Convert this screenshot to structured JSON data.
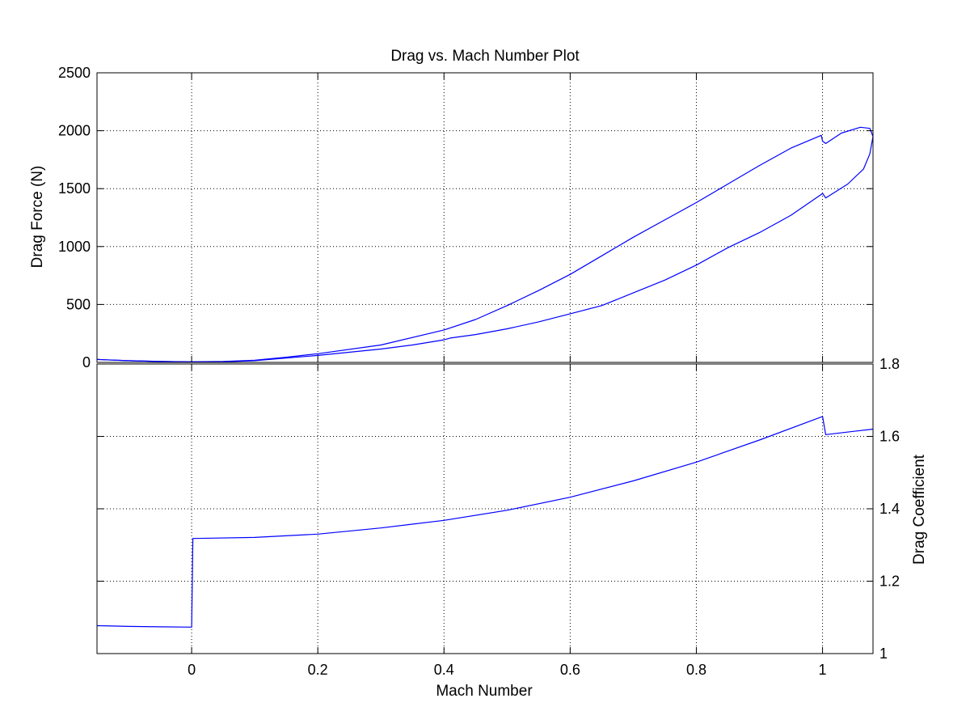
{
  "chart_data": [
    {
      "type": "line",
      "title": "Drag vs. Mach Number Plot",
      "xlabel": "",
      "ylabel": "Drag Force (N)",
      "xlim": [
        -0.15,
        1.08
      ],
      "ylim": [
        0,
        2500
      ],
      "xticks": [
        0,
        0.2,
        0.4,
        0.6,
        0.8,
        1
      ],
      "xtick_labels_visible": false,
      "yticks": [
        0,
        500,
        1000,
        1500,
        2000,
        2500
      ],
      "ytick_labels": [
        "0",
        "500",
        "1000",
        "1500",
        "2000",
        "2500"
      ],
      "yaxis_side": "left",
      "grid": true,
      "color": "#0000ff",
      "series": [
        {
          "x": [
            -0.15,
            -0.1,
            -0.05,
            0,
            0.05,
            0.1,
            0.15,
            0.2,
            0.3,
            0.4,
            0.45,
            0.5,
            0.55,
            0.6,
            0.65,
            0.7,
            0.75,
            0.8,
            0.85,
            0.9,
            0.95,
            0.998,
            1.0,
            1.005,
            1.03,
            1.06,
            1.075,
            1.08
          ],
          "y": [
            25,
            15,
            8,
            5,
            8,
            18,
            45,
            75,
            150,
            280,
            370,
            490,
            620,
            760,
            920,
            1080,
            1230,
            1380,
            1540,
            1700,
            1850,
            1960,
            1910,
            1890,
            1980,
            2030,
            2020,
            1950
          ]
        },
        {
          "x": [
            1.08,
            1.075,
            1.065,
            1.04,
            1.005,
            1.0,
            0.998,
            0.95,
            0.9,
            0.85,
            0.8,
            0.75,
            0.7,
            0.65,
            0.6,
            0.55,
            0.5,
            0.45,
            0.41,
            0.4,
            0.35,
            0.3,
            0.2,
            0.1,
            0.05,
            0,
            -0.05,
            -0.1,
            -0.15
          ],
          "y": [
            1950,
            1800,
            1670,
            1540,
            1420,
            1460,
            1450,
            1270,
            1120,
            990,
            840,
            710,
            600,
            490,
            420,
            350,
            290,
            240,
            210,
            195,
            150,
            115,
            60,
            15,
            5,
            5,
            8,
            15,
            25
          ]
        }
      ]
    },
    {
      "type": "line",
      "title": "",
      "xlabel": "Mach Number",
      "ylabel": "Drag Coefficient",
      "xlim": [
        -0.15,
        1.08
      ],
      "ylim": [
        1,
        1.8
      ],
      "xticks": [
        0,
        0.2,
        0.4,
        0.6,
        0.8,
        1
      ],
      "xtick_labels": [
        "0",
        "0.2",
        "0.4",
        "0.6",
        "0.8",
        "1"
      ],
      "yticks": [
        1,
        1.2,
        1.4,
        1.6,
        1.8
      ],
      "ytick_labels": [
        "1",
        "1.2",
        "1.4",
        "1.6",
        "1.8"
      ],
      "yaxis_side": "right",
      "grid": true,
      "color": "#0000ff",
      "series": [
        {
          "x": [
            -0.15,
            -0.1,
            -0.05,
            0,
            0.001,
            0.002,
            0.1,
            0.2,
            0.3,
            0.4,
            0.5,
            0.6,
            0.7,
            0.8,
            0.9,
            1.0,
            1.005,
            1.05,
            1.08
          ],
          "y": [
            1.077,
            1.075,
            1.074,
            1.073,
            1.2,
            1.318,
            1.321,
            1.33,
            1.347,
            1.368,
            1.396,
            1.432,
            1.477,
            1.529,
            1.59,
            1.655,
            1.605,
            1.614,
            1.62
          ]
        }
      ]
    }
  ]
}
